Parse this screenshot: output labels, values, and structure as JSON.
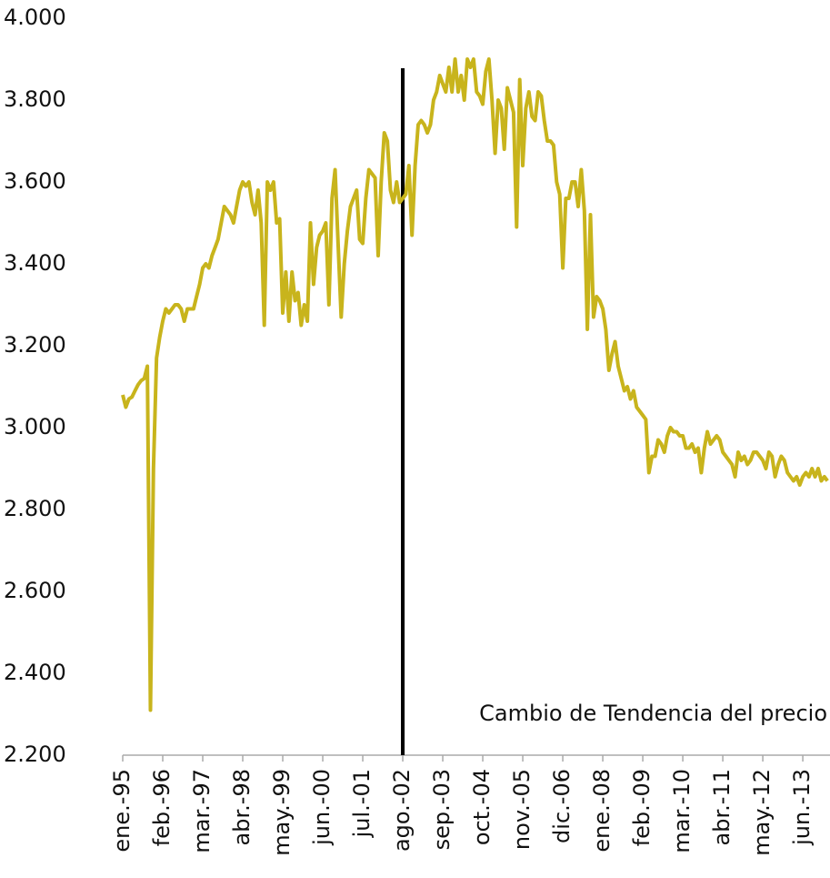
{
  "chart_data": {
    "type": "line",
    "annotation": "Cambio de Tendencia del precio",
    "vline": "ago.-02",
    "categories": [
      "ene.-95",
      null,
      null,
      null,
      null,
      null,
      null,
      null,
      null,
      null,
      null,
      null,
      null,
      "feb.-96",
      null,
      null,
      null,
      null,
      null,
      null,
      null,
      null,
      null,
      null,
      null,
      null,
      "mar.-97",
      null,
      null,
      null,
      null,
      null,
      null,
      null,
      null,
      null,
      null,
      null,
      null,
      "abr.-98",
      null,
      null,
      null,
      null,
      null,
      null,
      null,
      null,
      null,
      null,
      null,
      null,
      "may.-99",
      null,
      null,
      null,
      null,
      null,
      null,
      null,
      null,
      null,
      null,
      null,
      null,
      "jun.-00",
      null,
      null,
      null,
      null,
      null,
      null,
      null,
      null,
      null,
      null,
      null,
      null,
      "jul.-01",
      null,
      null,
      null,
      null,
      null,
      null,
      null,
      null,
      null,
      null,
      null,
      null,
      "ago.-02",
      null,
      null,
      null,
      null,
      null,
      null,
      null,
      null,
      null,
      null,
      null,
      null,
      "sep.-03",
      null,
      null,
      null,
      null,
      null,
      null,
      null,
      null,
      null,
      null,
      null,
      null,
      "oct.-04",
      null,
      null,
      null,
      null,
      null,
      null,
      null,
      null,
      null,
      null,
      null,
      null,
      "nov.-05",
      null,
      null,
      null,
      null,
      null,
      null,
      null,
      null,
      null,
      null,
      null,
      null,
      "dic.-06",
      null,
      null,
      null,
      null,
      null,
      null,
      null,
      null,
      null,
      null,
      null,
      null,
      "ene.-08",
      null,
      null,
      null,
      null,
      null,
      null,
      null,
      null,
      null,
      null,
      null,
      null,
      "feb.-09",
      null,
      null,
      null,
      null,
      null,
      null,
      null,
      null,
      null,
      null,
      null,
      null,
      "mar.-10",
      null,
      null,
      null,
      null,
      null,
      null,
      null,
      null,
      null,
      null,
      null,
      null,
      "abr.-11",
      null,
      null,
      null,
      null,
      null,
      null,
      null,
      null,
      null,
      null,
      null,
      null,
      "may.-12",
      null,
      null,
      null,
      null,
      null,
      null,
      null,
      null,
      null,
      null,
      null,
      null,
      "jun.-13",
      null,
      null,
      null,
      null,
      null,
      null,
      null,
      null
    ],
    "series": [
      {
        "name": null,
        "color": "#c8b41c",
        "values": [
          3080,
          3050,
          3070,
          3075,
          3090,
          3105,
          3115,
          3120,
          3150,
          2310,
          2900,
          3170,
          3220,
          3260,
          3290,
          3280,
          3290,
          3300,
          3300,
          3290,
          3260,
          3290,
          3290,
          3290,
          3320,
          3350,
          3390,
          3400,
          3390,
          3420,
          3440,
          3460,
          3500,
          3540,
          3530,
          3520,
          3500,
          3540,
          3580,
          3600,
          3590,
          3600,
          3550,
          3520,
          3580,
          3500,
          3250,
          3600,
          3580,
          3600,
          3500,
          3510,
          3280,
          3380,
          3260,
          3380,
          3310,
          3330,
          3250,
          3300,
          3260,
          3500,
          3350,
          3440,
          3470,
          3480,
          3500,
          3300,
          3560,
          3630,
          3450,
          3270,
          3400,
          3480,
          3540,
          3560,
          3580,
          3460,
          3450,
          3560,
          3630,
          3620,
          3610,
          3420,
          3600,
          3720,
          3700,
          3580,
          3550,
          3600,
          3550,
          3560,
          3570,
          3640,
          3470,
          3640,
          3740,
          3750,
          3740,
          3720,
          3740,
          3800,
          3820,
          3860,
          3840,
          3820,
          3880,
          3820,
          3900,
          3820,
          3860,
          3800,
          3900,
          3880,
          3900,
          3820,
          3810,
          3790,
          3870,
          3900,
          3800,
          3670,
          3800,
          3780,
          3680,
          3830,
          3800,
          3770,
          3490,
          3850,
          3640,
          3780,
          3820,
          3760,
          3750,
          3820,
          3810,
          3750,
          3700,
          3700,
          3690,
          3600,
          3570,
          3390,
          3560,
          3560,
          3600,
          3600,
          3540,
          3630,
          3530,
          3240,
          3520,
          3270,
          3320,
          3310,
          3290,
          3240,
          3140,
          3180,
          3210,
          3150,
          3120,
          3090,
          3100,
          3070,
          3090,
          3050,
          3040,
          3030,
          3020,
          2890,
          2930,
          2930,
          2970,
          2960,
          2940,
          2980,
          3000,
          2990,
          2990,
          2980,
          2980,
          2950,
          2950,
          2960,
          2940,
          2950,
          2890,
          2950,
          2990,
          2960,
          2970,
          2980,
          2970,
          2940,
          2930,
          2920,
          2910,
          2880,
          2940,
          2920,
          2930,
          2910,
          2920,
          2940,
          2940,
          2930,
          2920,
          2900,
          2940,
          2930,
          2880,
          2910,
          2930,
          2920,
          2890,
          2880,
          2870,
          2880,
          2860,
          2880,
          2890,
          2880,
          2900,
          2880,
          2900,
          2870,
          2880,
          2870
        ]
      }
    ],
    "ylim": [
      2200,
      4000
    ],
    "yticks": [
      {
        "value": 2200,
        "label": "2.200"
      },
      {
        "value": 2400,
        "label": "2.400"
      },
      {
        "value": 2600,
        "label": "2.600"
      },
      {
        "value": 2800,
        "label": "2.800"
      },
      {
        "value": 3000,
        "label": "3.000"
      },
      {
        "value": 3200,
        "label": "3.200"
      },
      {
        "value": 3400,
        "label": "3.400"
      },
      {
        "value": 3600,
        "label": "3.600"
      },
      {
        "value": 3800,
        "label": "3.800"
      },
      {
        "value": 4000,
        "label": "4.000"
      }
    ],
    "grid": false
  }
}
